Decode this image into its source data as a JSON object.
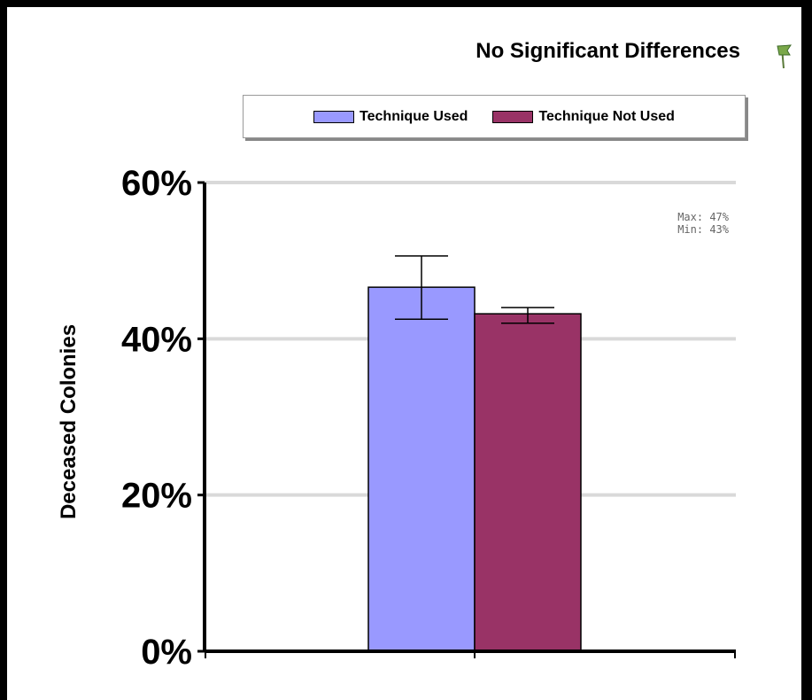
{
  "title": "No Significant Differences",
  "icons": {
    "flag": "flag-icon"
  },
  "stats": {
    "max_label": "Max: 47%",
    "min_label": "Min: 43%"
  },
  "colors": {
    "used": "#9999ff",
    "not_used": "#993366"
  },
  "chart_data": {
    "type": "bar",
    "title": "No Significant Differences",
    "xlabel": "",
    "ylabel": "Deceased Colonies",
    "ylim": [
      0,
      60
    ],
    "yticks": [
      "0%",
      "20%",
      "40%",
      "60%"
    ],
    "ytick_values": [
      0,
      20,
      40,
      60
    ],
    "grid": true,
    "legend_position": "top",
    "categories": [
      ""
    ],
    "series": [
      {
        "name": "Technique Used",
        "values": [
          46.6
        ],
        "error_low": [
          42.5
        ],
        "error_high": [
          50.6
        ],
        "color": "#9999ff"
      },
      {
        "name": "Technique Not Used",
        "values": [
          43.2
        ],
        "error_low": [
          42.0
        ],
        "error_high": [
          44.0
        ],
        "color": "#993366"
      }
    ]
  }
}
